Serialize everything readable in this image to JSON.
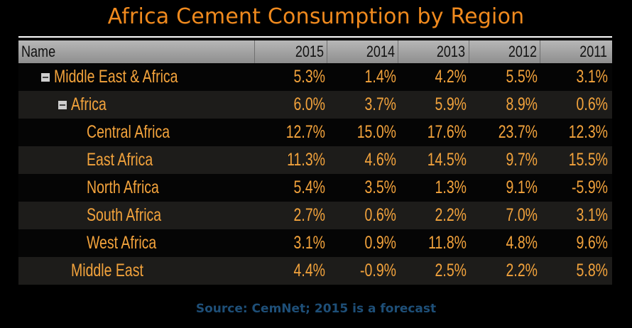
{
  "title": "Africa Cement Consumption by Region",
  "source": "Source: CemNet; 2015 is a forecast",
  "colors": {
    "title": "#f08a1e",
    "cell_text": "#f3a33c",
    "header_bg": "#a8a8a8",
    "source": "#1e4f78"
  },
  "chart_data": {
    "type": "table",
    "title": "Africa Cement Consumption by Region",
    "columns": [
      "Name",
      "2015",
      "2014",
      "2013",
      "2012",
      "2011"
    ],
    "rows": [
      {
        "name": "Middle East & Africa",
        "toggle": "collapse-icon",
        "values": [
          "5.3%",
          "1.4%",
          "4.2%",
          "5.5%",
          "3.1%"
        ]
      },
      {
        "name": "Africa",
        "toggle": "collapse-icon",
        "values": [
          "6.0%",
          "3.7%",
          "5.9%",
          "8.9%",
          "0.6%"
        ]
      },
      {
        "name": "Central Africa",
        "values": [
          "12.7%",
          "15.0%",
          "17.6%",
          "23.7%",
          "12.3%"
        ]
      },
      {
        "name": "East Africa",
        "values": [
          "11.3%",
          "4.6%",
          "14.5%",
          "9.7%",
          "15.5%"
        ]
      },
      {
        "name": "North Africa",
        "values": [
          "5.4%",
          "3.5%",
          "1.3%",
          "9.1%",
          "-5.9%"
        ]
      },
      {
        "name": "South Africa",
        "values": [
          "2.7%",
          "0.6%",
          "2.2%",
          "7.0%",
          "3.1%"
        ]
      },
      {
        "name": "West Africa",
        "values": [
          "3.1%",
          "0.9%",
          "11.8%",
          "4.8%",
          "9.6%"
        ]
      },
      {
        "name": "Middle East",
        "values": [
          "4.4%",
          "-0.9%",
          "2.5%",
          "2.2%",
          "5.8%"
        ]
      }
    ]
  }
}
